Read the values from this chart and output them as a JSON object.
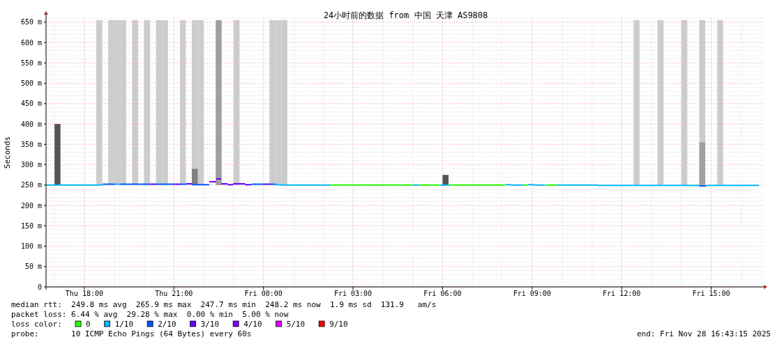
{
  "chart_data": {
    "type": "line",
    "title": "24小时前的数据 from 中国 天津 AS9808",
    "ylabel": "Seconds",
    "legend_title": "loss color:",
    "legend": "bottom",
    "grid": true,
    "xlim": [
      "2025-11-27T16:43",
      "2025-11-28T16:43"
    ],
    "xticks": [
      {
        "value": "2025-11-27T18:00",
        "label": "Thu 18:00"
      },
      {
        "value": "2025-11-27T21:00",
        "label": "Thu 21:00"
      },
      {
        "value": "2025-11-28T00:00",
        "label": "Fri 00:00"
      },
      {
        "value": "2025-11-28T03:00",
        "label": "Fri 03:00"
      },
      {
        "value": "2025-11-28T06:00",
        "label": "Fri 06:00"
      },
      {
        "value": "2025-11-28T09:00",
        "label": "Fri 09:00"
      },
      {
        "value": "2025-11-28T12:00",
        "label": "Fri 12:00"
      },
      {
        "value": "2025-11-28T15:00",
        "label": "Fri 15:00"
      }
    ],
    "ylim": [
      0,
      660
    ],
    "yticks": [
      {
        "value": 0,
        "label": "0"
      },
      {
        "value": 50,
        "label": "50 m"
      },
      {
        "value": 100,
        "label": "100 m"
      },
      {
        "value": 150,
        "label": "150 m"
      },
      {
        "value": 200,
        "label": "200 m"
      },
      {
        "value": 250,
        "label": "250 m"
      },
      {
        "value": 300,
        "label": "300 m"
      },
      {
        "value": 350,
        "label": "350 m"
      },
      {
        "value": 400,
        "label": "400 m"
      },
      {
        "value": 450,
        "label": "450 m"
      },
      {
        "value": 500,
        "label": "500 m"
      },
      {
        "value": 550,
        "label": "550 m"
      },
      {
        "value": 600,
        "label": "600 m"
      },
      {
        "value": 650,
        "label": "650 m"
      }
    ],
    "series": [
      {
        "type": "bar",
        "color": "#cccccc",
        "base": [
          250,
          250,
          250,
          250,
          250,
          250,
          250,
          250,
          250,
          250,
          250,
          250,
          250,
          250,
          250,
          250,
          250,
          250,
          250,
          250
        ],
        "x": [
          "2025-11-27T18:30",
          "2025-11-27T18:54",
          "2025-11-27T19:06",
          "2025-11-27T19:18",
          "2025-11-27T19:42",
          "2025-11-27T20:06",
          "2025-11-27T20:30",
          "2025-11-27T20:42",
          "2025-11-27T21:18",
          "2025-11-27T21:42",
          "2025-11-27T21:54",
          "2025-11-27T23:06",
          "2025-11-28T00:18",
          "2025-11-28T00:30",
          "2025-11-28T00:42",
          "2025-11-28T12:30",
          "2025-11-28T13:18",
          "2025-11-28T14:06",
          "2025-11-28T14:42",
          "2025-11-28T15:18"
        ],
        "values": [
          405,
          405,
          405,
          405,
          405,
          405,
          405,
          405,
          405,
          405,
          405,
          405,
          405,
          405,
          405,
          405,
          405,
          405,
          405,
          405
        ]
      },
      {
        "type": "bar",
        "color": "#a0a0a0",
        "base": [
          250,
          250
        ],
        "x": [
          "2025-11-27T22:30",
          "2025-11-28T14:42"
        ],
        "values": [
          405,
          105
        ]
      },
      {
        "type": "bar",
        "colors": [
          "#555555",
          "#808080",
          "#555555"
        ],
        "base": [
          250,
          250,
          250
        ],
        "x": [
          "2025-11-27T17:06",
          "2025-11-27T21:42",
          "2025-11-28T06:06"
        ],
        "values": [
          150,
          40,
          25
        ]
      },
      {
        "name": "0",
        "color": "#26ff00",
        "x": [
          "2025-11-28T02:14",
          "2025-11-28T05:00",
          null,
          "2025-11-28T05:12",
          "2025-11-28T05:54",
          null,
          "2025-11-28T06:13",
          "2025-11-28T08:06",
          null,
          "2025-11-28T08:42",
          "2025-11-28T08:52",
          null,
          "2025-11-28T09:26",
          "2025-11-28T09:50"
        ],
        "values": [
          250,
          250,
          null,
          250,
          250,
          null,
          250,
          250,
          null,
          250,
          250,
          null,
          250,
          250
        ]
      },
      {
        "name": "1/10",
        "color": "#00b8ff",
        "x": [
          "2025-11-27T16:43",
          "2025-11-27T18:37",
          null,
          "2025-11-27T19:01",
          "2025-11-27T19:12",
          null,
          "2025-11-28T00:24",
          "2025-11-28T00:36",
          null,
          "2025-11-28T00:36",
          "2025-11-28T02:14",
          null,
          "2025-11-28T05:00",
          "2025-11-28T05:12",
          null,
          "2025-11-28T05:54",
          "2025-11-28T06:13",
          null,
          "2025-11-28T08:06",
          "2025-11-28T08:18",
          null,
          "2025-11-28T08:18",
          "2025-11-28T08:42",
          null,
          "2025-11-28T08:52",
          "2025-11-28T09:04",
          null,
          "2025-11-28T09:04",
          "2025-11-28T09:26",
          null,
          "2025-11-28T09:50",
          "2025-11-28T11:12",
          null,
          "2025-11-28T11:12",
          "2025-11-28T14:36",
          null,
          "2025-11-28T14:50",
          "2025-11-28T16:36"
        ],
        "values": [
          250,
          250,
          null,
          252,
          252,
          null,
          251,
          251,
          null,
          250,
          250,
          null,
          250,
          250,
          null,
          250,
          250,
          null,
          251,
          251,
          null,
          250,
          250,
          null,
          251,
          251,
          null,
          250,
          250,
          null,
          250,
          250,
          null,
          249,
          249,
          null,
          249,
          249
        ]
      },
      {
        "name": "2/10",
        "color": "#0059ff",
        "x": [
          "2025-11-27T18:37",
          "2025-11-27T19:01",
          null,
          "2025-11-27T19:12",
          "2025-11-27T20:12",
          null,
          "2025-11-27T20:25",
          "2025-11-27T20:59",
          null,
          "2025-11-27T21:13",
          "2025-11-27T21:24",
          null,
          "2025-11-27T21:37",
          "2025-11-27T22:11",
          null,
          "2025-11-27T23:36",
          "2025-11-28T00:00",
          null,
          "2025-11-28T00:13",
          "2025-11-28T00:24",
          null,
          "2025-11-28T14:36",
          "2025-11-28T14:50"
        ],
        "values": [
          252,
          252,
          null,
          252,
          252,
          null,
          252,
          252,
          null,
          252,
          252,
          null,
          251,
          251,
          null,
          252,
          252,
          null,
          252,
          252,
          null,
          248,
          248
        ]
      },
      {
        "name": "3/10",
        "color": "#5e00ff",
        "x": [
          "2025-11-27T20:12",
          "2025-11-27T20:25",
          null,
          "2025-11-27T20:59",
          "2025-11-27T21:13",
          null,
          "2025-11-27T21:24",
          "2025-11-27T21:37",
          null,
          "2025-11-27T22:35",
          "2025-11-27T22:48",
          null,
          "2025-11-27T22:48",
          "2025-11-27T22:59",
          null,
          "2025-11-27T22:59",
          "2025-11-27T23:23",
          null,
          "2025-11-27T23:23",
          "2025-11-27T23:36",
          null,
          "2025-11-28T00:00",
          "2025-11-28T00:13"
        ],
        "values": [
          252,
          252,
          null,
          252,
          252,
          null,
          253,
          253,
          null,
          253,
          253,
          null,
          251,
          251,
          null,
          253,
          253,
          null,
          251,
          251,
          null,
          252,
          252
        ]
      },
      {
        "name": "4/10",
        "color": "#7e00ff",
        "x": [
          "2025-11-27T22:11",
          "2025-11-27T22:25",
          null,
          "2025-11-27T22:25",
          "2025-11-27T22:35"
        ],
        "values": [
          258,
          258,
          null,
          265,
          265
        ]
      },
      {
        "name": "5/10",
        "color": "#dd00ff"
      },
      {
        "name": "9/10",
        "color": "#ff0000"
      }
    ],
    "annotations": [
      "median rtt:  249.8 ms avg  265.9 ms max  247.7 ms min  248.2 ms now  1.9 ms sd  131.9   am/s",
      "packet loss: 6.44 % avg  29.28 % max  0.00 % min  5.00 % now",
      "probe:       10 ICMP Echo Pings (64 Bytes) every 60s",
      "end: Fri Nov 28 16:43:15 2025"
    ]
  }
}
